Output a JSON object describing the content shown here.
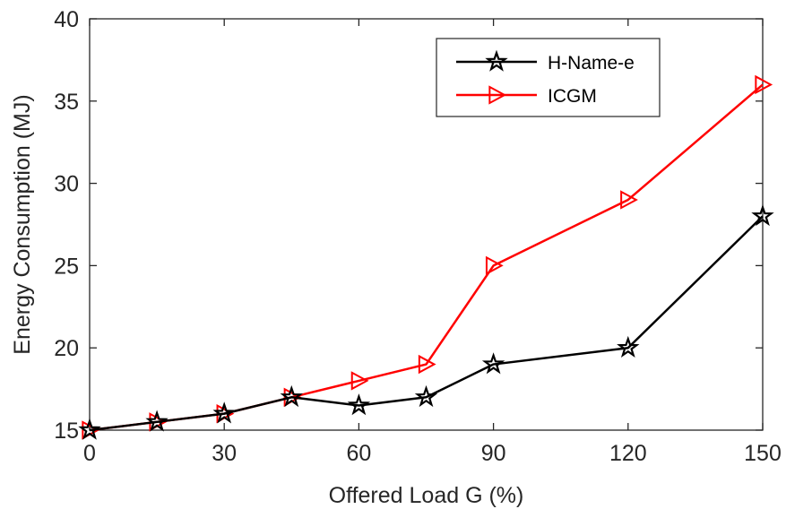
{
  "chart_data": {
    "type": "line",
    "title": "",
    "xlabel": "Offered Load G (%)",
    "ylabel": "Energy Consumption (MJ)",
    "xlim": [
      0,
      150
    ],
    "ylim": [
      15,
      40
    ],
    "xticks": [
      0,
      30,
      60,
      90,
      120,
      150
    ],
    "yticks": [
      15,
      20,
      25,
      30,
      35,
      40
    ],
    "xtick_labels": [
      "0",
      "30",
      "60",
      "90",
      "120",
      "150"
    ],
    "ytick_labels": [
      "15",
      "20",
      "25",
      "30",
      "35",
      "40"
    ],
    "grid": false,
    "legend_position": "top-right",
    "series": [
      {
        "name": "H-Name-e",
        "color": "#000000",
        "marker": "star",
        "x": [
          0,
          15,
          30,
          45,
          60,
          75,
          90,
          120,
          150
        ],
        "y": [
          15,
          15.5,
          16,
          17,
          16.5,
          17,
          19,
          20,
          28
        ]
      },
      {
        "name": "ICGM",
        "color": "#ff0000",
        "marker": "triangle-right",
        "x": [
          0,
          15,
          30,
          45,
          60,
          75,
          90,
          120,
          150
        ],
        "y": [
          15,
          15.5,
          16,
          17,
          18,
          19,
          25,
          29,
          36
        ]
      }
    ]
  }
}
